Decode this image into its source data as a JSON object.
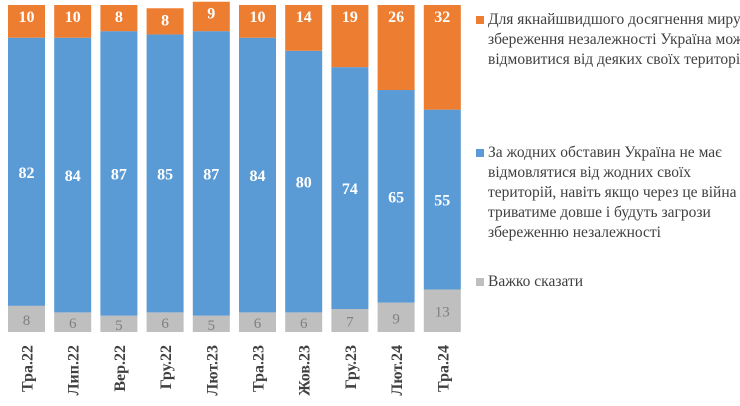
{
  "chart_data": {
    "type": "bar",
    "stacked": true,
    "categories": [
      "Тра.22",
      "Лип.22",
      "Вер.22",
      "Гру.22",
      "Лют.23",
      "Тра.23",
      "Жов.23",
      "Гру.23",
      "Лют.24",
      "Тра.24"
    ],
    "series": [
      {
        "name": "Важко сказати",
        "color": "#bfbfbf",
        "values": [
          8,
          6,
          5,
          6,
          5,
          6,
          6,
          7,
          9,
          13
        ]
      },
      {
        "name": "За жодних обставин Україна не має відмовлятися від жодних своїх територій, навіть якщо через це війна триватиме довше і будуть загрози збереженню незалежності",
        "color": "#5b9bd5",
        "values": [
          82,
          84,
          87,
          85,
          87,
          84,
          80,
          74,
          65,
          55
        ]
      },
      {
        "name": "Для якнайшвидшого досягнення миру і збереження незалежності Україна може відмовитися від деяких своїх територій",
        "color": "#ed7d31",
        "values": [
          10,
          10,
          8,
          8,
          9,
          10,
          14,
          19,
          26,
          32
        ]
      }
    ],
    "ylim": [
      0,
      100
    ],
    "grid": false,
    "legend_position": "right",
    "data_labels": true
  }
}
